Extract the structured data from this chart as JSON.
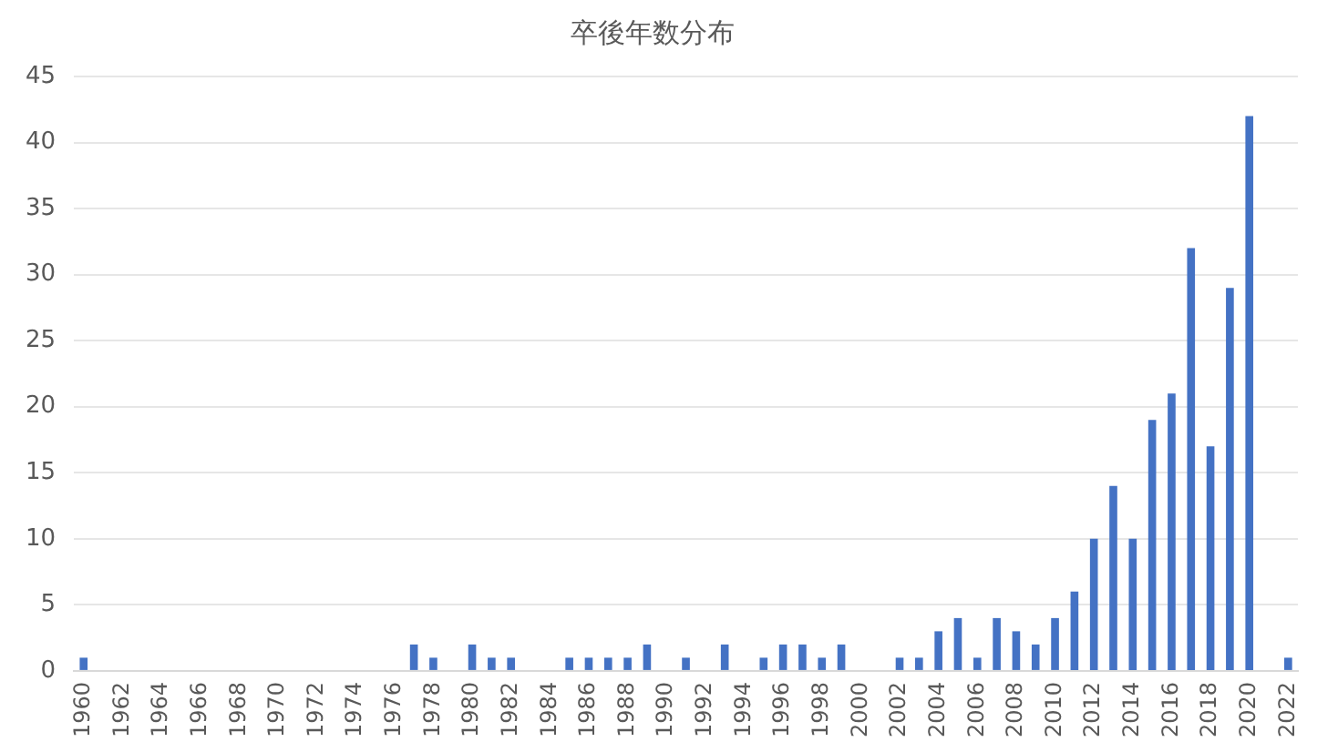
{
  "chart_data": {
    "type": "bar",
    "title": "卒後年数分布",
    "categories": [
      "1960",
      null,
      "1962",
      null,
      "1964",
      null,
      "1966",
      null,
      "1968",
      null,
      "1970",
      null,
      "1972",
      null,
      "1974",
      null,
      "1976",
      null,
      "1978",
      null,
      "1980",
      null,
      "1982",
      null,
      "1984",
      null,
      "1986",
      null,
      "1988",
      null,
      "1990",
      null,
      "1992",
      null,
      "1994",
      null,
      "1996",
      null,
      "1998",
      null,
      "2000",
      null,
      "2002",
      null,
      "2004",
      null,
      "2006",
      null,
      "2008",
      null,
      "2010",
      null,
      "2012",
      null,
      "2014",
      null,
      "2016",
      null,
      "2018",
      null,
      "2020",
      null,
      "2022"
    ],
    "values": [
      1,
      0,
      0,
      0,
      0,
      0,
      0,
      0,
      0,
      0,
      0,
      0,
      0,
      0,
      0,
      0,
      0,
      2,
      1,
      0,
      2,
      1,
      1,
      0,
      0,
      1,
      1,
      1,
      1,
      2,
      0,
      1,
      0,
      2,
      0,
      1,
      2,
      2,
      1,
      2,
      0,
      0,
      1,
      1,
      3,
      4,
      1,
      4,
      3,
      2,
      4,
      6,
      10,
      14,
      10,
      19,
      21,
      32,
      17,
      29,
      42,
      0,
      1
    ],
    "color": "#4472c4",
    "ylim": [
      0,
      45
    ],
    "yticks": [
      0,
      5,
      10,
      15,
      20,
      25,
      30,
      35,
      40,
      45
    ],
    "grid": "y"
  }
}
